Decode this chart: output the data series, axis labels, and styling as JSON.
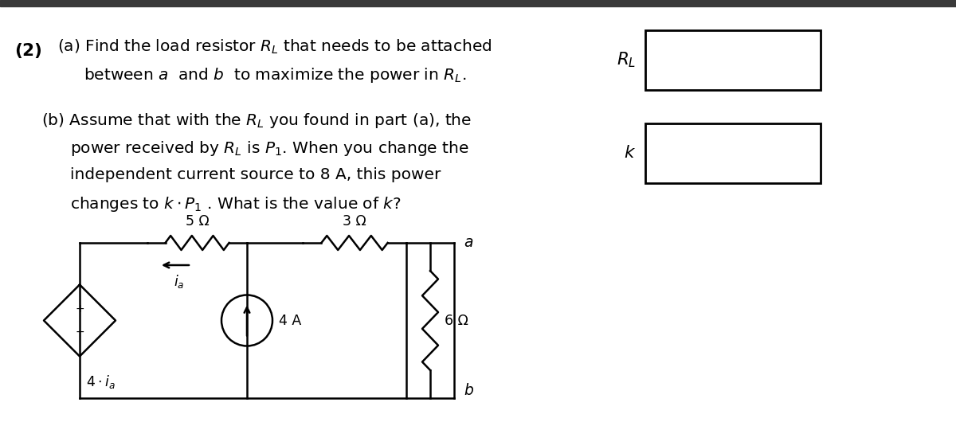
{
  "bg_color": "#ffffff",
  "top_bar_color": "#3a3a3a",
  "text_color": "#000000",
  "fs_main": 14.5,
  "fs_circuit": 12.5,
  "box1_label": "$R_L$",
  "box2_label": "$k$",
  "res1_label": "5 Ω",
  "res2_label": "3 Ω",
  "res3_label": "6 Ω",
  "cur_label": "4 A",
  "dep_label": "$4 \\cdot i_a$",
  "ia_label": "$i_a$",
  "node_a": "$a$",
  "node_b": "$b$"
}
